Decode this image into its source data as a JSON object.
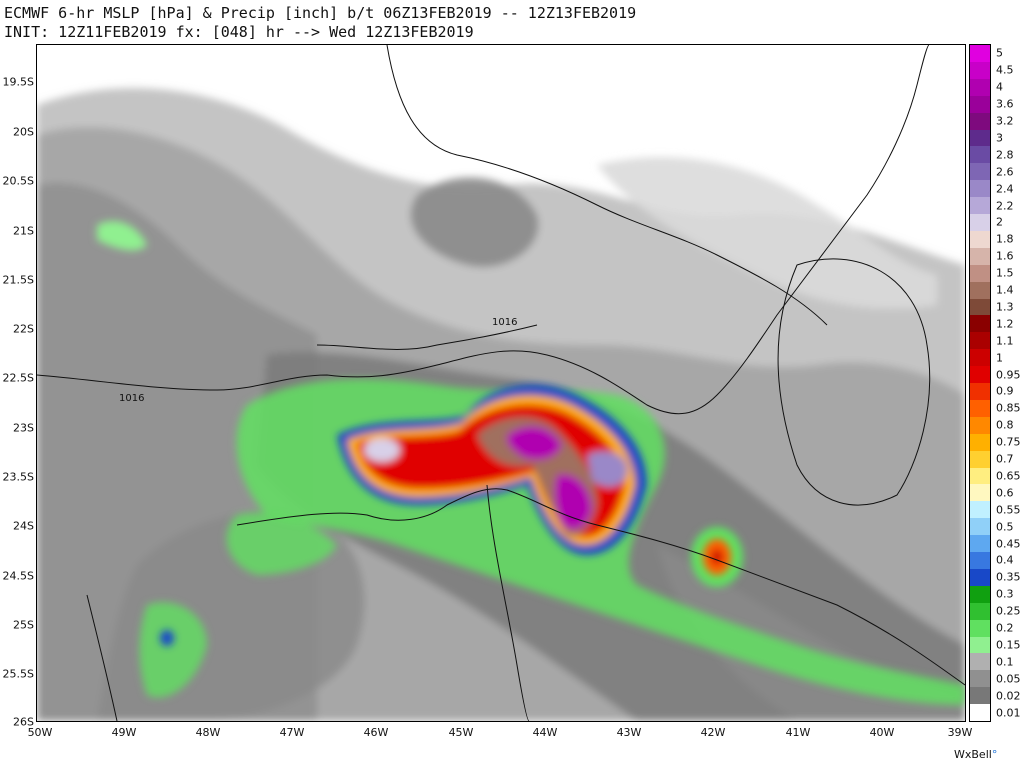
{
  "header": {
    "line1": "ECMWF 6-hr MSLP [hPa] & Precip [inch] b/t 06Z13FEB2019 -- 12Z13FEB2019",
    "line2": "INIT: 12Z11FEB2019 fx: [048] hr --> Wed 12Z13FEB2019"
  },
  "lat_labels": [
    "19.5S",
    "20S",
    "20.5S",
    "21S",
    "21.5S",
    "22S",
    "22.5S",
    "23S",
    "23.5S",
    "24S",
    "24.5S",
    "25S",
    "25.5S",
    "26S"
  ],
  "lon_labels": [
    "50W",
    "49W",
    "48W",
    "47W",
    "46W",
    "45W",
    "44W",
    "43W",
    "42W",
    "41W",
    "40W",
    "39W"
  ],
  "isobar_labels": [
    "1016",
    "1016"
  ],
  "legend": {
    "labels": [
      "5",
      "4.5",
      "4",
      "3.6",
      "3.2",
      "3",
      "2.8",
      "2.6",
      "2.4",
      "2.2",
      "2",
      "1.8",
      "1.6",
      "1.5",
      "1.4",
      "1.3",
      "1.2",
      "1.1",
      "1",
      "0.95",
      "0.9",
      "0.85",
      "0.8",
      "0.75",
      "0.7",
      "0.65",
      "0.6",
      "0.55",
      "0.5",
      "0.45",
      "0.4",
      "0.35",
      "0.3",
      "0.25",
      "0.2",
      "0.15",
      "0.1",
      "0.05",
      "0.02",
      "0.01"
    ],
    "colors": [
      "#e000e0",
      "#c800c8",
      "#b000b0",
      "#9a009a",
      "#7e0a7e",
      "#5e2b8c",
      "#6a4ba4",
      "#7e66b4",
      "#9a88c8",
      "#b6a8d8",
      "#d8d0e8",
      "#eed8d0",
      "#d6b4aa",
      "#c09084",
      "#a0705e",
      "#7e4a38",
      "#8a0000",
      "#aa0000",
      "#cc0000",
      "#e00000",
      "#f03000",
      "#ff6000",
      "#ff8800",
      "#ffb000",
      "#ffd030",
      "#ffee80",
      "#fff8c0",
      "#c0f0ff",
      "#90d0f8",
      "#5ea8f0",
      "#3878e0",
      "#1848c8",
      "#10a010",
      "#30c030",
      "#60e060",
      "#90f090",
      "#b0b0b0",
      "#909090",
      "#787878",
      "#ffffff"
    ]
  },
  "brand": {
    "name": "WxBell",
    "mark": "°"
  }
}
